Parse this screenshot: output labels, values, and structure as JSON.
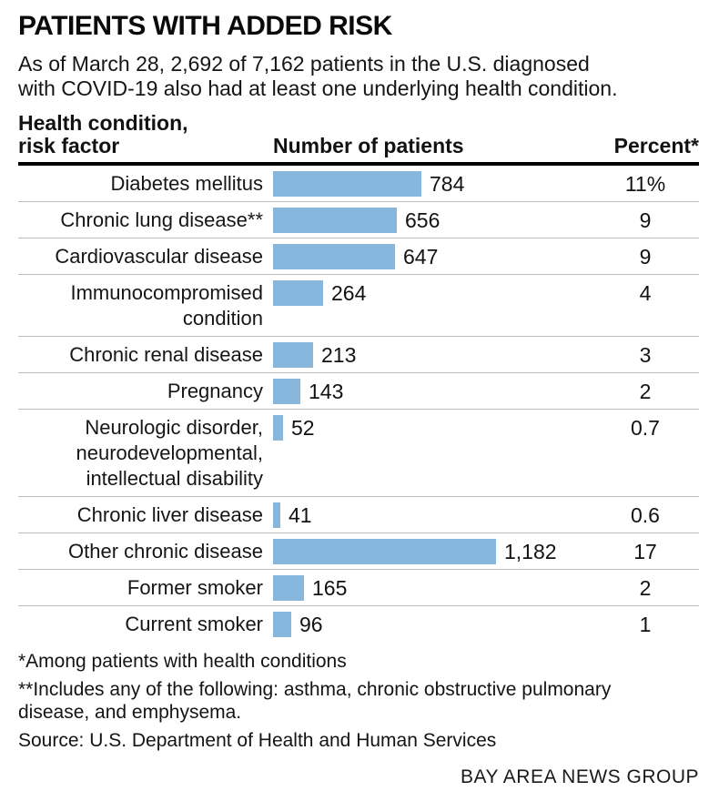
{
  "header": {
    "title": "PATIENTS WITH ADDED RISK",
    "subtitle": "As of March 28, 2,692 of 7,162 patients in the U.S. diagnosed\nwith COVID-19 also had at least one underlying health condition."
  },
  "columns": {
    "condition": "Health condition,\nrisk factor",
    "patients": "Number of patients",
    "percent": "Percent*"
  },
  "chart_data": {
    "type": "bar",
    "orientation": "horizontal",
    "title": "PATIENTS WITH ADDED RISK",
    "xlabel": "Number of patients",
    "legend": null,
    "grid": "row-dividers",
    "bar_color": "#87b7dd",
    "total_note": "2,692 of 7,162 patients had at least one underlying condition",
    "categories": [
      "Diabetes mellitus",
      "Chronic lung disease**",
      "Cardiovascular disease",
      "Immunocompromised condition",
      "Chronic renal disease",
      "Pregnancy",
      "Neurologic disorder, neurodevelopmental, intellectual disability",
      "Chronic liver disease",
      "Other chronic disease",
      "Former smoker",
      "Current smoker"
    ],
    "values": [
      784,
      656,
      647,
      264,
      213,
      143,
      52,
      41,
      1182,
      165,
      96
    ],
    "percents": [
      11,
      9,
      9,
      4,
      3,
      2,
      0.7,
      0.6,
      17,
      2,
      1
    ],
    "rows": [
      {
        "label": "Diabetes mellitus",
        "value": 784,
        "value_label": "784",
        "percent_label": "11%"
      },
      {
        "label": "Chronic lung disease**",
        "value": 656,
        "value_label": "656",
        "percent_label": "9"
      },
      {
        "label": "Cardiovascular disease",
        "value": 647,
        "value_label": "647",
        "percent_label": "9"
      },
      {
        "label": "Immunocompromised\ncondition",
        "value": 264,
        "value_label": "264",
        "percent_label": "4"
      },
      {
        "label": "Chronic renal disease",
        "value": 213,
        "value_label": "213",
        "percent_label": "3"
      },
      {
        "label": "Pregnancy",
        "value": 143,
        "value_label": "143",
        "percent_label": "2"
      },
      {
        "label": "Neurologic disorder,\nneurodevelopmental,\nintellectual disability",
        "value": 52,
        "value_label": "52",
        "percent_label": "0.7"
      },
      {
        "label": "Chronic liver disease",
        "value": 41,
        "value_label": "41",
        "percent_label": "0.6"
      },
      {
        "label": "Other chronic disease",
        "value": 1182,
        "value_label": "1,182",
        "percent_label": "17"
      },
      {
        "label": "Former smoker",
        "value": 165,
        "value_label": "165",
        "percent_label": "2"
      },
      {
        "label": "Current smoker",
        "value": 96,
        "value_label": "96",
        "percent_label": "1"
      }
    ]
  },
  "footnotes": {
    "fn1": "*Among patients with health conditions",
    "fn2": "**Includes any of the following: asthma, chronic obstructive pulmonary\ndisease, and emphysema.",
    "source": "Source: U.S. Department of Health and Human Services"
  },
  "credit": "BAY AREA NEWS GROUP"
}
